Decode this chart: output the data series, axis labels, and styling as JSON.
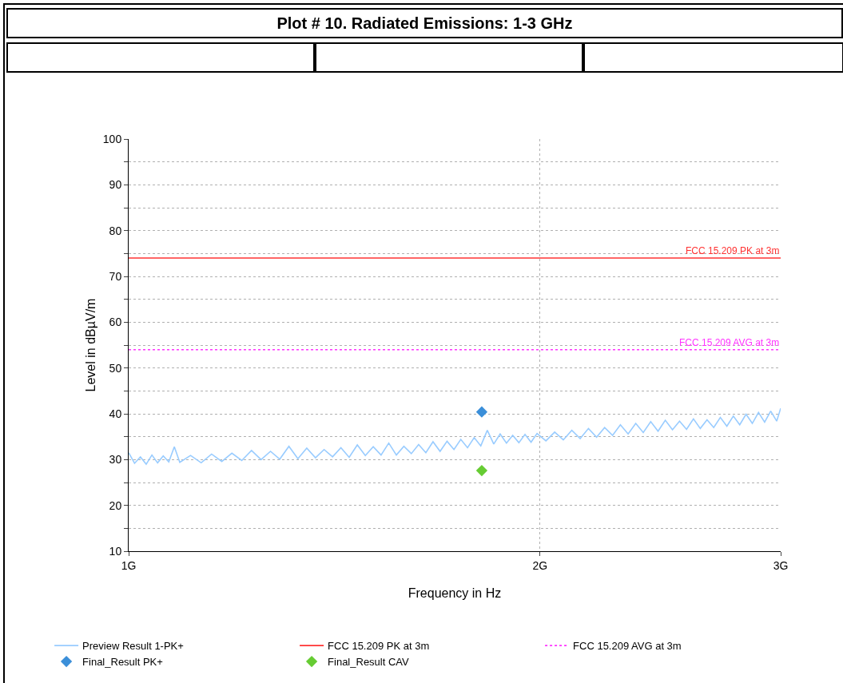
{
  "chart_data": {
    "type": "line",
    "title": "Plot # 10. Radiated Emissions: 1-3 GHz",
    "xlabel": "Frequency in Hz",
    "ylabel": "Level in dBµV/m",
    "log": "x",
    "xlim": [
      1,
      3
    ],
    "xticks": [
      {
        "value": 1,
        "label": "1G"
      },
      {
        "value": 2,
        "label": "2G"
      },
      {
        "value": 3,
        "label": "3G"
      }
    ],
    "ylim": [
      10,
      100
    ],
    "yticks": [
      10,
      {
        "value": 15,
        "label": null
      },
      20,
      {
        "value": 25,
        "label": null
      },
      30,
      {
        "value": 35,
        "label": null
      },
      40,
      {
        "value": 45,
        "label": null
      },
      50,
      {
        "value": 55,
        "label": null
      },
      60,
      {
        "value": 65,
        "label": null
      },
      70,
      {
        "value": 75,
        "label": null
      },
      80,
      {
        "value": 85,
        "label": null
      },
      90,
      {
        "value": 95,
        "label": null
      },
      100
    ],
    "grid": true,
    "legend": "bottom",
    "series": [
      {
        "name": "Preview Result 1-PK+",
        "color": "#99ccff",
        "line_style": "solid",
        "x": [
          1.0,
          1.01,
          1.02,
          1.03,
          1.04,
          1.05,
          1.06,
          1.07,
          1.08,
          1.09,
          1.11,
          1.13,
          1.15,
          1.17,
          1.19,
          1.21,
          1.23,
          1.25,
          1.27,
          1.29,
          1.31,
          1.33,
          1.35,
          1.37,
          1.39,
          1.41,
          1.43,
          1.45,
          1.47,
          1.49,
          1.51,
          1.53,
          1.55,
          1.57,
          1.59,
          1.61,
          1.63,
          1.65,
          1.67,
          1.69,
          1.71,
          1.73,
          1.75,
          1.77,
          1.79,
          1.81,
          1.83,
          1.85,
          1.87,
          1.89,
          1.91,
          1.93,
          1.95,
          1.97,
          1.99,
          2.02,
          2.05,
          2.08,
          2.11,
          2.14,
          2.17,
          2.2,
          2.23,
          2.26,
          2.29,
          2.32,
          2.35,
          2.38,
          2.41,
          2.44,
          2.47,
          2.5,
          2.53,
          2.56,
          2.59,
          2.62,
          2.65,
          2.68,
          2.71,
          2.74,
          2.77,
          2.8,
          2.83,
          2.86,
          2.89,
          2.92,
          2.95,
          2.98,
          3.0
        ],
        "values": [
          31.5,
          29.2,
          30.6,
          29.0,
          31.0,
          29.3,
          30.8,
          29.5,
          32.8,
          29.4,
          30.9,
          29.3,
          31.2,
          29.6,
          31.4,
          29.8,
          32.0,
          30.0,
          31.8,
          30.1,
          32.9,
          30.2,
          32.5,
          30.4,
          32.2,
          30.6,
          32.6,
          30.5,
          33.2,
          30.9,
          32.8,
          31.0,
          33.6,
          31.0,
          32.9,
          31.3,
          33.3,
          31.5,
          33.9,
          31.8,
          34.0,
          32.2,
          34.4,
          32.6,
          34.8,
          33.0,
          36.4,
          33.4,
          35.6,
          33.6,
          35.3,
          33.7,
          35.5,
          33.8,
          35.7,
          34.1,
          36.0,
          34.3,
          36.4,
          34.6,
          36.8,
          34.9,
          37.0,
          35.3,
          37.6,
          35.6,
          37.9,
          35.9,
          38.3,
          36.2,
          38.6,
          36.5,
          38.4,
          36.6,
          38.9,
          36.8,
          38.7,
          37.0,
          39.2,
          37.3,
          39.5,
          37.6,
          39.9,
          37.9,
          40.3,
          38.2,
          40.6,
          38.4,
          41.2
        ]
      },
      {
        "name": "FCC 15.209 PK at 3m",
        "color": "#ff3333",
        "line_style": "solid",
        "x": [
          1,
          3
        ],
        "values": [
          74,
          74
        ]
      },
      {
        "name": "FCC 15.209 AVG at 3m",
        "color": "#ff33ff",
        "line_style": "dotted",
        "x": [
          1,
          3
        ],
        "values": [
          54,
          54
        ]
      },
      {
        "name": "Final_Result PK+",
        "type": "scatter",
        "marker": "diamond",
        "color": "#3b8fd9",
        "x": [
          1.813
        ],
        "values": [
          40.4
        ]
      },
      {
        "name": "Final_Result CAV",
        "type": "scatter",
        "marker": "diamond",
        "color": "#66cc33",
        "x": [
          1.813
        ],
        "values": [
          27.6
        ]
      }
    ],
    "annotations": [
      {
        "text": "FCC 15.209 PK at 3m",
        "x": 3,
        "y": 74
      },
      {
        "text": "FCC 15.209 AVG at 3m",
        "x": 3,
        "y": 54
      }
    ]
  }
}
